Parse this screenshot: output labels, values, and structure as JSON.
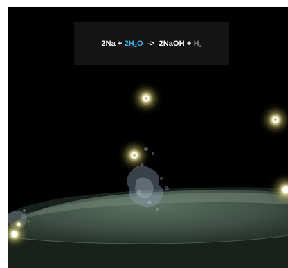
{
  "equation": {
    "sodium": "2Na",
    "plus_1": "+",
    "water_coef": "2H",
    "water_sub": "2",
    "water_tail": "O",
    "arrow": "->",
    "hydroxide": "2NaOH",
    "plus_2": "+",
    "hydrogen": "H",
    "hydrogen_sub": "2"
  },
  "colors": {
    "background": "#000000",
    "panel": "#141414",
    "water_highlight": "#3fb2ee",
    "hydrogen_dim": "#7a7a7a",
    "glow": "#f5ecb0",
    "water_surface": "#4f6457"
  }
}
